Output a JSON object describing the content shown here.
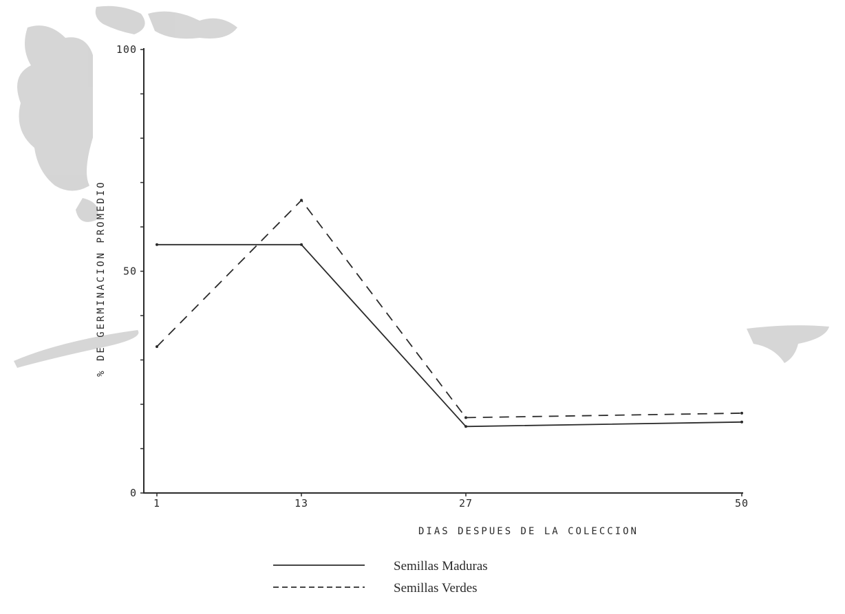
{
  "chart_data": {
    "type": "line",
    "title": "",
    "xlabel": "DIAS DESPUES DE LA COLECCION",
    "ylabel": "% DE GERMINACION PROMEDIO",
    "x": [
      1,
      13,
      27,
      50
    ],
    "x_tick_labels": [
      "1",
      "13",
      "27",
      "50"
    ],
    "y_tick_labels": [
      "0",
      "50",
      "100"
    ],
    "ylim": [
      0,
      100
    ],
    "grid": false,
    "legend_position": "bottom-center",
    "series": [
      {
        "name": "Semillas Maduras",
        "line_style": "solid",
        "values": [
          56,
          56,
          15,
          16
        ]
      },
      {
        "name": "Semillas Verdes",
        "line_style": "dashed",
        "values": [
          33,
          66,
          17,
          18
        ]
      }
    ]
  },
  "colors": {
    "ink": "#2a2a2a",
    "smudge": "#c8c8c8"
  }
}
